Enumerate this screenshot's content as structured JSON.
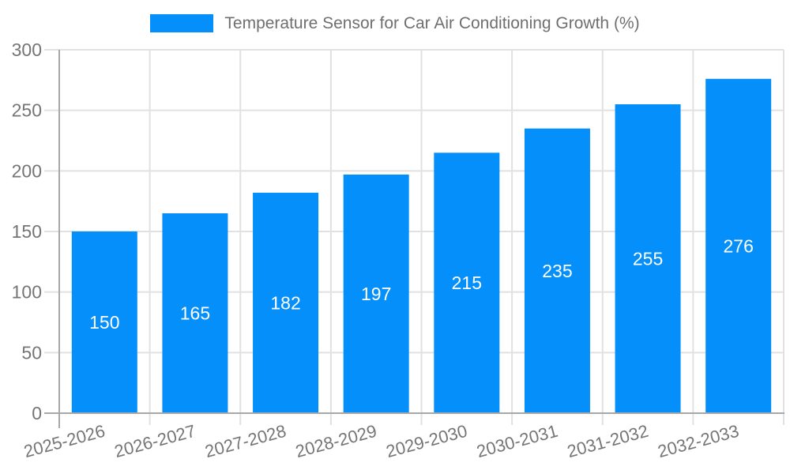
{
  "chart_data": {
    "type": "bar",
    "title": "Temperature Sensor for Car Air Conditioning Growth (%)",
    "categories": [
      "2025-2026",
      "2026-2027",
      "2027-2028",
      "2028-2029",
      "2029-2030",
      "2030-2031",
      "2031-2032",
      "2032-2033"
    ],
    "series": [
      {
        "name": "Temperature Sensor for Car Air Conditioning Growth (%)",
        "values": [
          150,
          165,
          182,
          197,
          215,
          235,
          255,
          276
        ]
      }
    ],
    "xlabel": "",
    "ylabel": "",
    "ylim": [
      0,
      300
    ],
    "yticks": [
      0,
      50,
      100,
      150,
      200,
      250,
      300
    ],
    "grid": true,
    "legend_position": "top",
    "x_label_rotation_deg": -15,
    "data_labels_inside_bars": true
  },
  "legend": {
    "label": "Temperature Sensor for Car Air Conditioning Growth (%)",
    "marker_color": "#058FFB"
  },
  "colors": {
    "bar": "#058FFB",
    "grid_line": "#e1e1e1",
    "axis_line": "#a8a8a8",
    "tick_label": "#757575",
    "legend_text": "#6f6f6f",
    "value_label": "#ffffff",
    "background": "#ffffff"
  }
}
